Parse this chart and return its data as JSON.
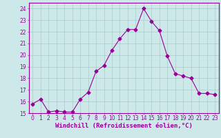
{
  "x": [
    0,
    1,
    2,
    3,
    4,
    5,
    6,
    7,
    8,
    9,
    10,
    11,
    12,
    13,
    14,
    15,
    16,
    17,
    18,
    19,
    20,
    21,
    22,
    23
  ],
  "y": [
    15.8,
    16.2,
    15.1,
    15.2,
    15.1,
    15.1,
    16.2,
    16.8,
    18.6,
    19.1,
    20.4,
    21.4,
    22.2,
    22.2,
    24.0,
    22.9,
    22.1,
    19.9,
    18.4,
    18.2,
    18.0,
    16.7,
    16.7,
    16.6
  ],
  "line_color": "#990099",
  "marker": "D",
  "marker_size": 2.5,
  "background_color": "#cce8e8",
  "grid_color": "#aacccc",
  "xlabel": "Windchill (Refroidissement éolien,°C)",
  "xlabel_color": "#990099",
  "xlim": [
    -0.5,
    23.5
  ],
  "ylim": [
    15,
    24.5
  ],
  "yticks": [
    15,
    16,
    17,
    18,
    19,
    20,
    21,
    22,
    23,
    24
  ],
  "xticks": [
    0,
    1,
    2,
    3,
    4,
    5,
    6,
    7,
    8,
    9,
    10,
    11,
    12,
    13,
    14,
    15,
    16,
    17,
    18,
    19,
    20,
    21,
    22,
    23
  ],
  "tick_color": "#990099",
  "tick_labelsize": 5.5,
  "xlabel_fontsize": 6.5
}
